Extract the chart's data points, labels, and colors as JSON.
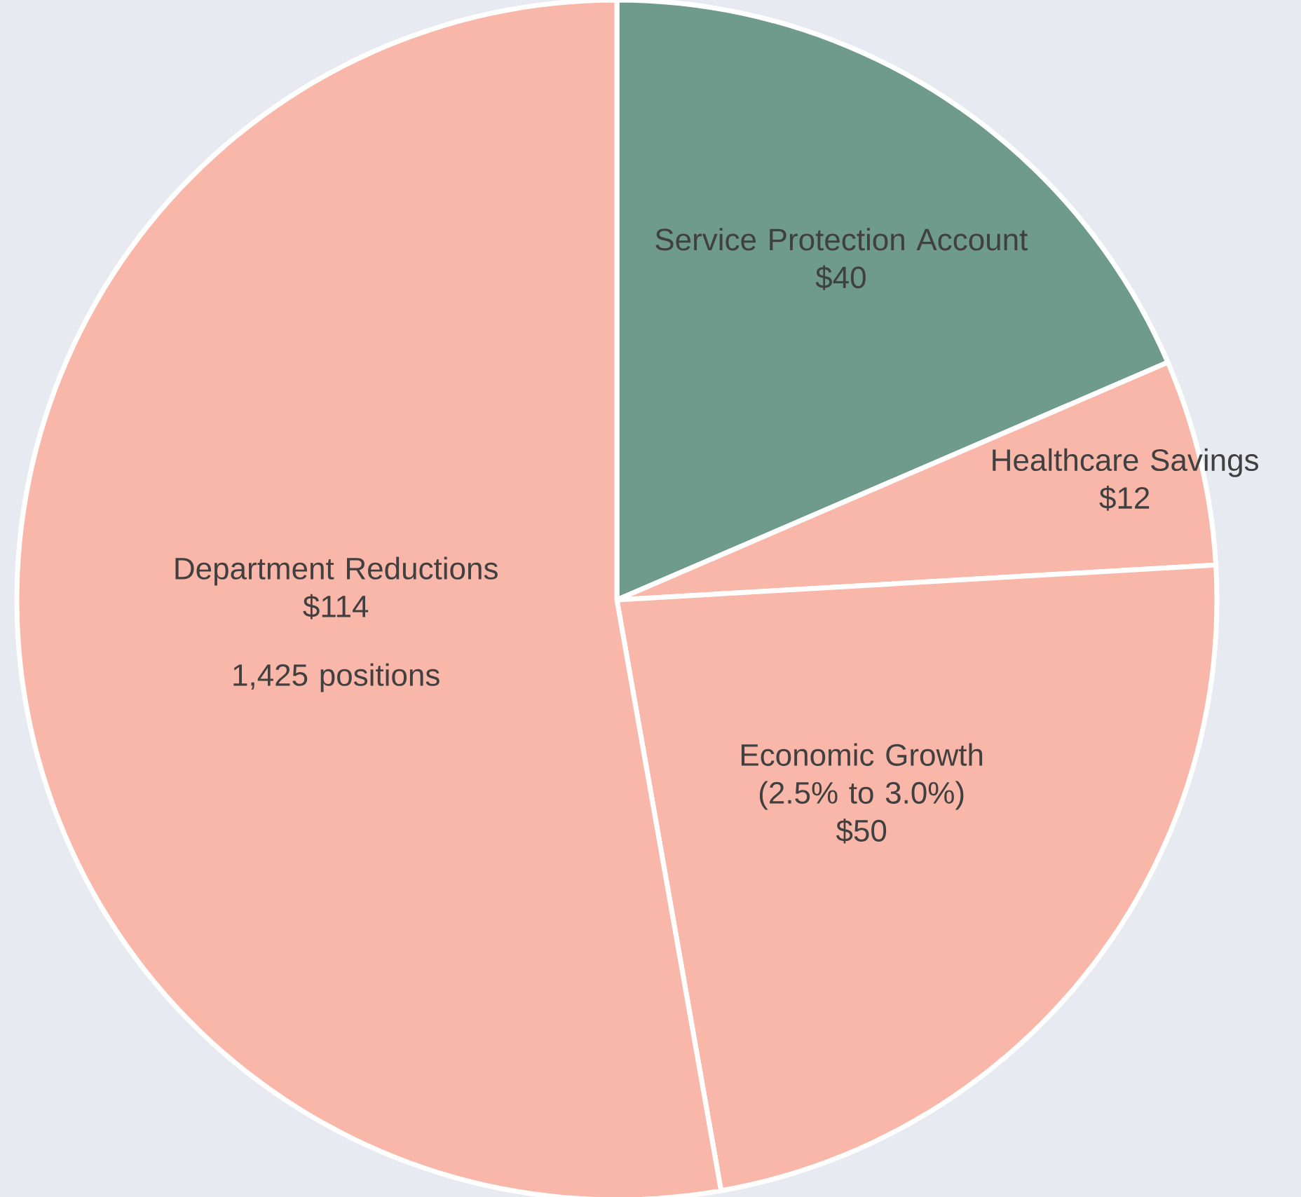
{
  "chart_data": {
    "type": "pie",
    "categories": [
      "Service Protection Account",
      "Healthcare Savings",
      "Economic Growth (2.5% to 3.0%)",
      "Department Reductions"
    ],
    "values": [
      40,
      12,
      50,
      114
    ],
    "value_labels": [
      "$40",
      "$12",
      "$50",
      "$114"
    ],
    "colors": [
      "#6f9b8c",
      "#f9b7a9",
      "#f9b7a9",
      "#f9b7a9"
    ],
    "annotations": [
      "1,425 positions"
    ]
  }
}
